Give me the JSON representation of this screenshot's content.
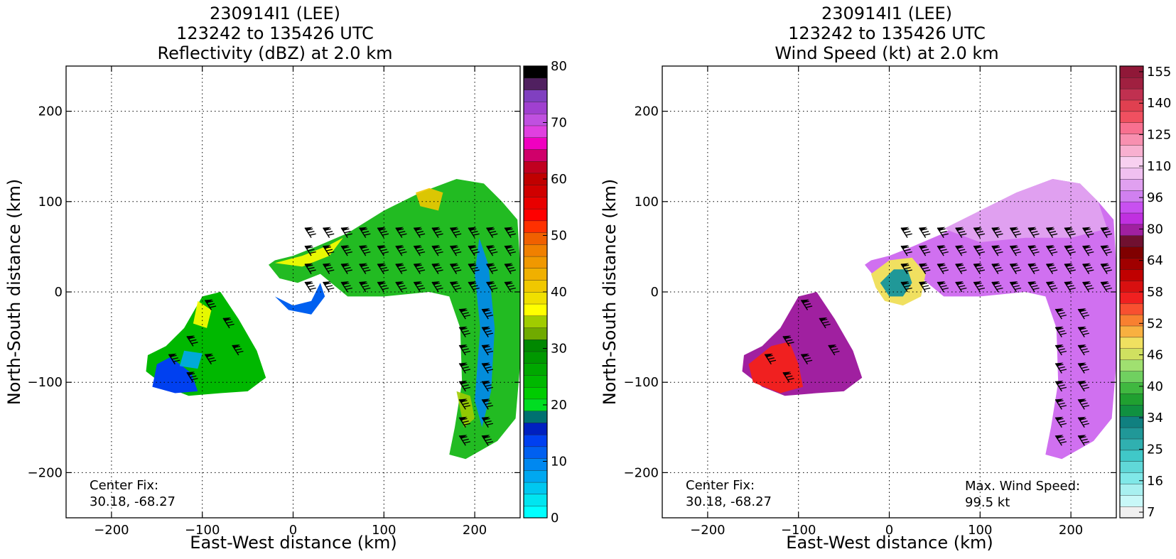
{
  "colors": {
    "refl_scale": [
      "#00ffff",
      "#00e5f0",
      "#00c8f0",
      "#00a8f0",
      "#0088f0",
      "#0060f0",
      "#0040f0",
      "#0020c0",
      "#007070",
      "#00dd22",
      "#00cc00",
      "#00b800",
      "#00a800",
      "#009800",
      "#008800",
      "#70aa00",
      "#a0cc00",
      "#ffff00",
      "#f0e000",
      "#f0c800",
      "#f0b000",
      "#f09800",
      "#f08000",
      "#f06000",
      "#ff3000",
      "#ff0000",
      "#e80000",
      "#d00000",
      "#c00000",
      "#c00020",
      "#d0006a",
      "#f000c0",
      "#e040e0",
      "#c050e0",
      "#a040d0",
      "#8040c0",
      "#502060",
      "#000000"
    ],
    "wind_scale": [
      "#f0f0f0",
      "#c8f8f8",
      "#a8f0f0",
      "#80e8e8",
      "#60d8d8",
      "#40c8c8",
      "#30b0b0",
      "#209898",
      "#108080",
      "#109040",
      "#20a030",
      "#40b840",
      "#70d060",
      "#a0e070",
      "#d0e060",
      "#f0e060",
      "#f8b040",
      "#f88030",
      "#f85030",
      "#f02020",
      "#d81010",
      "#c00000",
      "#a00000",
      "#800000",
      "#701030",
      "#a020a0",
      "#c030e0",
      "#c850f0",
      "#d080f0",
      "#e0a0f0",
      "#f0c0f0",
      "#f8d0f0",
      "#f8b0d0",
      "#f890b0",
      "#f87090",
      "#f05060",
      "#e04050",
      "#c03050",
      "#a02040",
      "#901838"
    ],
    "refl_core_green": "#22bb22",
    "wind_core_purple": "#d070f0"
  },
  "left": {
    "title_line1": "230914I1 (LEE)",
    "title_line2": "123242 to 135426 UTC",
    "title_line3": "Reflectivity (dBZ) at 2.0 km",
    "center_fix_label": "Center Fix:",
    "center_fix_value": "30.18, -68.27",
    "colorbar_labels": [
      "0",
      "10",
      "20",
      "30",
      "40",
      "50",
      "60",
      "70",
      "80"
    ],
    "colorbar_values": [
      0,
      10,
      20,
      30,
      40,
      50,
      60,
      70,
      80
    ]
  },
  "right": {
    "title_line1": "230914I1 (LEE)",
    "title_line2": "123242 to 135426 UTC",
    "title_line3": "Wind Speed (kt) at 2.0 km",
    "center_fix_label": "Center Fix:",
    "center_fix_value": "30.18, -68.27",
    "max_wind_label": "Max. Wind Speed:",
    "max_wind_value": "99.5 kt",
    "colorbar_labels": [
      "7",
      "16",
      "25",
      "34",
      "40",
      "46",
      "52",
      "58",
      "64",
      "80",
      "96",
      "110",
      "125",
      "140",
      "155"
    ]
  },
  "chart_data": [
    {
      "type": "heatmap",
      "title": "230914I1 (LEE) 123242 to 135426 UTC Reflectivity (dBZ) at 2.0 km",
      "xlabel": "East-West distance (km)",
      "ylabel": "North-South distance (km)",
      "xlim": [
        -250,
        250
      ],
      "ylim": [
        -250,
        250
      ],
      "xticks": [
        -200,
        -100,
        0,
        100,
        200
      ],
      "yticks": [
        -200,
        -100,
        0,
        100,
        200
      ],
      "xtick_labels": [
        "−200",
        "−100",
        "0",
        "100",
        "200"
      ],
      "ytick_labels": [
        "−200",
        "−100",
        "0",
        "100",
        "200"
      ],
      "grid": true,
      "colorbar": {
        "label_values": [
          0,
          10,
          20,
          30,
          40,
          50,
          60,
          70,
          80
        ],
        "range": [
          0,
          80
        ]
      }
    },
    {
      "type": "heatmap",
      "title": "230914I1 (LEE) 123242 to 135426 UTC Wind Speed (kt) at 2.0 km",
      "xlabel": "East-West distance (km)",
      "ylabel": "North-South distance (km)",
      "xlim": [
        -250,
        250
      ],
      "ylim": [
        -250,
        250
      ],
      "xticks": [
        -200,
        -100,
        0,
        100,
        200
      ],
      "yticks": [
        -200,
        -100,
        0,
        100,
        200
      ],
      "xtick_labels": [
        "−200",
        "−100",
        "0",
        "100",
        "200"
      ],
      "ytick_labels": [
        "−200",
        "−100",
        "0",
        "100",
        "200"
      ],
      "grid": true,
      "colorbar": {
        "label_values": [
          7,
          16,
          25,
          34,
          40,
          46,
          52,
          58,
          64,
          80,
          96,
          110,
          125,
          140,
          155
        ]
      },
      "max_wind_kt": 99.5
    }
  ]
}
